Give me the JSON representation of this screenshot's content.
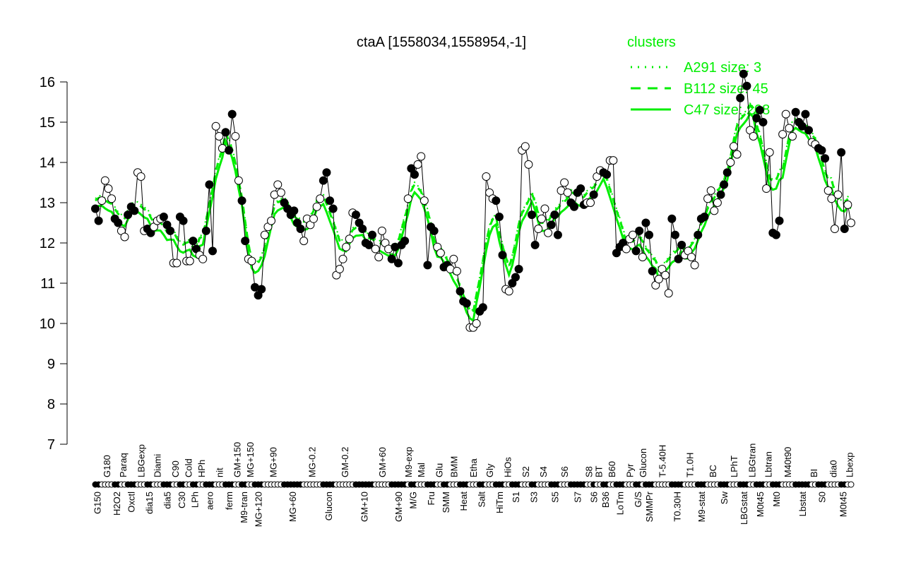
{
  "chart_data": {
    "type": "line",
    "title": "ctaA [1558034,1558954,-1]",
    "xlabel": "",
    "ylabel": "",
    "ylim": [
      7,
      16
    ],
    "yticks": [
      7,
      8,
      9,
      10,
      11,
      12,
      13,
      14,
      15,
      16
    ],
    "legend": {
      "title": "clusters",
      "placement": "top-right",
      "entries": [
        {
          "label": "A291 size: 3",
          "style": "dotted"
        },
        {
          "label": "B112 size: 45",
          "style": "dashed"
        },
        {
          "label": "C47 size: 208",
          "style": "solid"
        }
      ]
    },
    "colors": {
      "cluster": "#00ee00",
      "points": "#000000"
    },
    "groups": [
      {
        "label": "G150",
        "values": [
          12.85,
          12.55
        ]
      },
      {
        "label": "G180",
        "values": [
          13.05,
          13.55,
          13.35,
          13.1
        ]
      },
      {
        "label": "H2O2",
        "values": [
          12.6,
          12.5
        ]
      },
      {
        "label": "Paraq",
        "values": [
          12.3,
          12.15
        ]
      },
      {
        "label": "Oxctl",
        "values": [
          12.7,
          12.9,
          12.8
        ]
      },
      {
        "label": "LBGexp",
        "values": [
          13.75,
          13.65,
          12.3
        ]
      },
      {
        "label": "dia15",
        "values": [
          12.35,
          12.25
        ]
      },
      {
        "label": "Diami",
        "values": [
          12.4,
          12.55,
          12.6
        ]
      },
      {
        "label": "dia5",
        "values": [
          12.65,
          12.45,
          12.3
        ]
      },
      {
        "label": "C90",
        "values": [
          11.5,
          11.5
        ]
      },
      {
        "label": "C30",
        "values": [
          12.65,
          12.55
        ]
      },
      {
        "label": "Cold",
        "values": [
          11.55,
          11.55
        ]
      },
      {
        "label": "LPh",
        "values": [
          12.05,
          11.85
        ]
      },
      {
        "label": "HPh",
        "values": [
          11.7,
          11.6
        ]
      },
      {
        "label": "aero",
        "values": [
          12.3,
          13.45,
          11.8
        ]
      },
      {
        "label": "nit",
        "values": [
          14.9,
          14.65,
          14.35
        ]
      },
      {
        "label": "ferm",
        "values": [
          14.75,
          14.3,
          15.2
        ]
      },
      {
        "label": "GM+150",
        "values": [
          14.65,
          13.55
        ]
      },
      {
        "label": "M9-tran",
        "values": [
          13.05,
          12.05
        ]
      },
      {
        "label": "MG+150",
        "values": [
          11.6,
          11.55
        ]
      },
      {
        "label": "MG+120",
        "values": [
          10.9,
          10.7,
          10.85
        ]
      },
      {
        "label": "MG+90",
        "values": [
          12.2,
          12.4,
          12.55,
          13.2,
          13.45,
          13.25
        ]
      },
      {
        "label": "MG+60",
        "values": [
          13.0,
          12.85,
          12.7,
          12.8,
          12.5,
          12.35
        ]
      },
      {
        "label": "MG-0.2",
        "values": [
          12.05,
          12.6,
          12.45,
          12.6,
          12.9,
          13.1
        ]
      },
      {
        "label": "Glucon",
        "values": [
          13.55,
          13.75,
          13.05,
          12.85
        ]
      },
      {
        "label": "GM-0.2",
        "values": [
          11.2,
          11.35,
          11.6,
          11.9,
          12.1,
          12.75
        ]
      },
      {
        "label": "GM+10",
        "values": [
          12.7,
          12.5,
          12.35,
          12.0,
          11.95,
          12.2
        ]
      },
      {
        "label": "GM+60",
        "values": [
          11.85,
          11.65,
          12.3,
          12.0,
          11.85
        ]
      },
      {
        "label": "GM+90",
        "values": [
          11.6,
          11.9,
          11.5,
          11.95,
          12.05
        ]
      },
      {
        "label": "M9-exp",
        "values": [
          13.1
        ]
      },
      {
        "label": "M/G",
        "values": [
          13.85,
          13.7
        ]
      },
      {
        "label": "Mal",
        "values": [
          13.95,
          14.15,
          13.05
        ]
      },
      {
        "label": "Fru",
        "values": [
          11.45,
          12.4,
          12.3
        ]
      },
      {
        "label": "Glu",
        "values": [
          11.9,
          11.75
        ]
      },
      {
        "label": "SMM",
        "values": [
          11.4,
          11.45
        ]
      },
      {
        "label": "BMM",
        "values": [
          11.35,
          11.6,
          11.3
        ]
      },
      {
        "label": "Heat",
        "values": [
          10.8,
          10.55,
          10.5
        ]
      },
      {
        "label": "Etha",
        "values": [
          9.9,
          9.9,
          10.0
        ]
      },
      {
        "label": "Salt",
        "values": [
          10.3,
          10.4
        ]
      },
      {
        "label": "Gly",
        "values": [
          13.65,
          13.25,
          13.1
        ]
      },
      {
        "label": "HiTm",
        "values": [
          13.05,
          12.65,
          11.7
        ]
      },
      {
        "label": "HiOs",
        "values": [
          10.85,
          10.8
        ]
      },
      {
        "label": "S1",
        "values": [
          11.0,
          11.15,
          11.35
        ]
      },
      {
        "label": "S2",
        "values": [
          14.3,
          14.4,
          13.95
        ]
      },
      {
        "label": "S3",
        "values": [
          12.7,
          11.95
        ]
      },
      {
        "label": "S4",
        "values": [
          12.35,
          12.6,
          12.85,
          12.25
        ]
      },
      {
        "label": "S5",
        "values": [
          12.45,
          12.7,
          12.2
        ]
      },
      {
        "label": "S6",
        "values": [
          13.3,
          13.5,
          13.25
        ]
      },
      {
        "label": "S7",
        "values": [
          13.0,
          12.9,
          13.25,
          13.35,
          12.95
        ]
      },
      {
        "label": "S8",
        "values": [
          13.0,
          13.0
        ]
      },
      {
        "label": "S6",
        "values": [
          13.2
        ]
      },
      {
        "label": "BT",
        "values": [
          13.65,
          13.8
        ]
      },
      {
        "label": "B36",
        "values": [
          13.75,
          13.7
        ]
      },
      {
        "label": "B60",
        "values": [
          14.05,
          14.05
        ]
      },
      {
        "label": "LoTm",
        "values": [
          11.75,
          11.9,
          12.0
        ]
      },
      {
        "label": "Pyr",
        "values": [
          11.85,
          12.1,
          12.2
        ]
      },
      {
        "label": "G/S",
        "values": [
          11.8,
          12.3
        ]
      },
      {
        "label": "Glucon",
        "values": [
          11.65
        ]
      },
      {
        "label": "SMMPr",
        "values": [
          12.5,
          12.2,
          11.3
        ]
      },
      {
        "label": "T-5.40H",
        "values": [
          10.95,
          11.1,
          11.35,
          11.2,
          10.75
        ]
      },
      {
        "label": "T0.30H",
        "values": [
          12.6,
          12.2,
          11.6,
          11.95
        ]
      },
      {
        "label": "T1.0H",
        "values": [
          11.7,
          11.8,
          11.65,
          11.45
        ]
      },
      {
        "label": "M9-stat",
        "values": [
          12.2,
          12.6,
          12.65
        ]
      },
      {
        "label": "BC",
        "values": [
          13.1,
          13.3,
          12.8,
          13.0
        ]
      },
      {
        "label": "Sw",
        "values": [
          13.2,
          13.45,
          13.75
        ]
      },
      {
        "label": "LPhT",
        "values": [
          14.0,
          14.4,
          14.2
        ]
      },
      {
        "label": "LBGstat",
        "values": [
          15.6,
          16.2,
          15.9
        ]
      },
      {
        "label": "LBGtran",
        "values": [
          14.8,
          14.65
        ]
      },
      {
        "label": "M0t45",
        "values": [
          15.1,
          15.3,
          15.0
        ]
      },
      {
        "label": "Lbtran",
        "values": [
          13.35,
          14.25
        ]
      },
      {
        "label": "Mt0",
        "values": [
          12.25,
          12.2,
          12.55
        ]
      },
      {
        "label": "M40t90",
        "values": [
          14.7,
          15.2,
          14.85,
          14.65
        ]
      },
      {
        "label": "Lbstat",
        "values": [
          15.25,
          15.0,
          14.9,
          15.2,
          14.8
        ]
      },
      {
        "label": "BI",
        "values": [
          14.5,
          14.45
        ]
      },
      {
        "label": "S0",
        "values": [
          14.35,
          14.3,
          14.1
        ]
      },
      {
        "label": "dia0",
        "values": [
          13.3,
          13.1,
          12.35,
          13.2
        ]
      },
      {
        "label": "M0t45",
        "values": [
          14.25,
          12.35
        ]
      },
      {
        "label": "Lbexp",
        "values": [
          12.95,
          12.5
        ]
      }
    ]
  }
}
